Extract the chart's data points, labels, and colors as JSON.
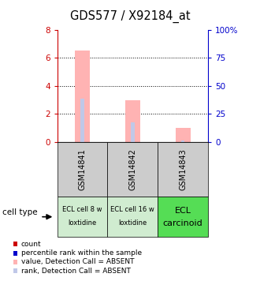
{
  "title": "GDS577 / X92184_at",
  "samples": [
    "GSM14841",
    "GSM14842",
    "GSM14843"
  ],
  "bar_values": [
    6.5,
    3.0,
    1.0
  ],
  "rank_values": [
    3.1,
    1.4,
    0.1
  ],
  "ylim_left": [
    0,
    8
  ],
  "ylim_right": [
    0,
    100
  ],
  "yticks_left": [
    0,
    2,
    4,
    6,
    8
  ],
  "yticks_right": [
    0,
    25,
    50,
    75,
    100
  ],
  "bar_color": "#ffb3b3",
  "rank_color": "#c0c8e8",
  "cell_types_line1": [
    "ECL cell 8 w",
    "ECL cell 16 w",
    "ECL"
  ],
  "cell_types_line2": [
    "loxtidine",
    "loxtidine",
    "carcinoid"
  ],
  "cell_colors": [
    "#d0ecd0",
    "#d0ecd0",
    "#55dd55"
  ],
  "sample_bg_color": "#cccccc",
  "legend_items": [
    {
      "color": "#cc0000",
      "label": "count"
    },
    {
      "color": "#0000cc",
      "label": "percentile rank within the sample"
    },
    {
      "color": "#ffb3b3",
      "label": "value, Detection Call = ABSENT"
    },
    {
      "color": "#c0c8e8",
      "label": "rank, Detection Call = ABSENT"
    }
  ],
  "left_axis_color": "#cc0000",
  "right_axis_color": "#0000cc",
  "cell_type_label": "cell type"
}
